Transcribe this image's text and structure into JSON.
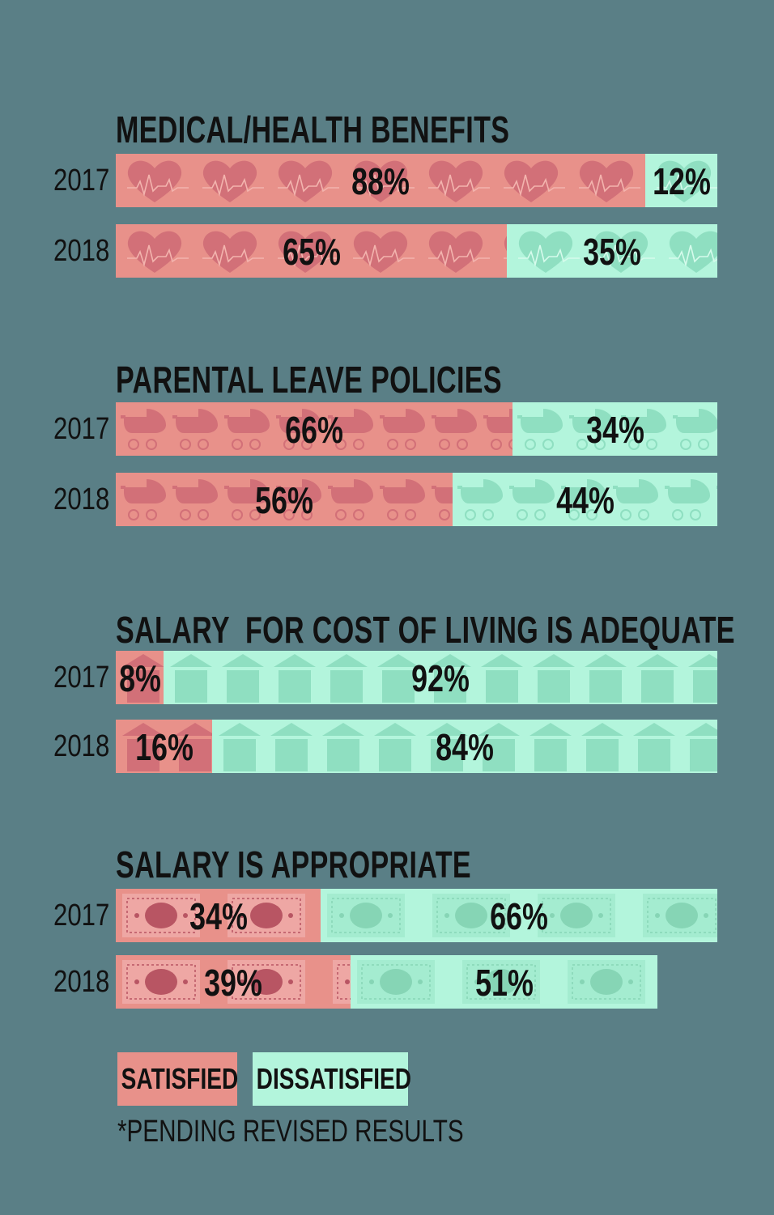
{
  "colors": {
    "background": "#5a7f86",
    "satisfied": "#e8918a",
    "dissatisfied": "#b3f5dc"
  },
  "chart_data": [
    {
      "type": "bar",
      "orientation": "horizontal-stacked",
      "title": "MEDICAL/HEALTH BENEFITS",
      "icon": "heart-icon",
      "categories": [
        "2017",
        "2018"
      ],
      "series": [
        {
          "name": "SATISFIED",
          "values": [
            88,
            65
          ],
          "labels": [
            "88%",
            "65%"
          ]
        },
        {
          "name": "DISSATISFIED",
          "values": [
            12,
            35
          ],
          "labels": [
            "12%",
            "35%"
          ]
        }
      ]
    },
    {
      "type": "bar",
      "orientation": "horizontal-stacked",
      "title": "PARENTAL LEAVE POLICIES",
      "icon": "stroller-icon",
      "categories": [
        "2017",
        "2018"
      ],
      "series": [
        {
          "name": "SATISFIED",
          "values": [
            66,
            56
          ],
          "labels": [
            "66%",
            "56%"
          ]
        },
        {
          "name": "DISSATISFIED",
          "values": [
            34,
            44
          ],
          "labels": [
            "34%",
            "44%"
          ]
        }
      ]
    },
    {
      "type": "bar",
      "orientation": "horizontal-stacked",
      "title": "SALARY  FOR COST OF LIVING IS ADEQUATE",
      "icon": "house-icon",
      "categories": [
        "2017",
        "2018"
      ],
      "series": [
        {
          "name": "SATISFIED",
          "values": [
            8,
            16
          ],
          "labels": [
            "8%",
            "16%"
          ]
        },
        {
          "name": "DISSATISFIED",
          "values": [
            92,
            84
          ],
          "labels": [
            "92%",
            "84%"
          ]
        }
      ]
    },
    {
      "type": "bar",
      "orientation": "horizontal-stacked",
      "title": "SALARY IS APPROPRIATE",
      "icon": "money-icon",
      "categories": [
        "2017",
        "2018"
      ],
      "series": [
        {
          "name": "SATISFIED",
          "values": [
            34,
            39
          ],
          "labels": [
            "34%",
            "39%"
          ]
        },
        {
          "name": "DISSATISFIED",
          "values": [
            66,
            51
          ],
          "labels": [
            "66%",
            "51%"
          ]
        }
      ]
    }
  ],
  "legend": [
    {
      "name": "SATISFIED"
    },
    {
      "name": "DISSATISFIED"
    }
  ],
  "footnote": "*PENDING REVISED RESULTS"
}
